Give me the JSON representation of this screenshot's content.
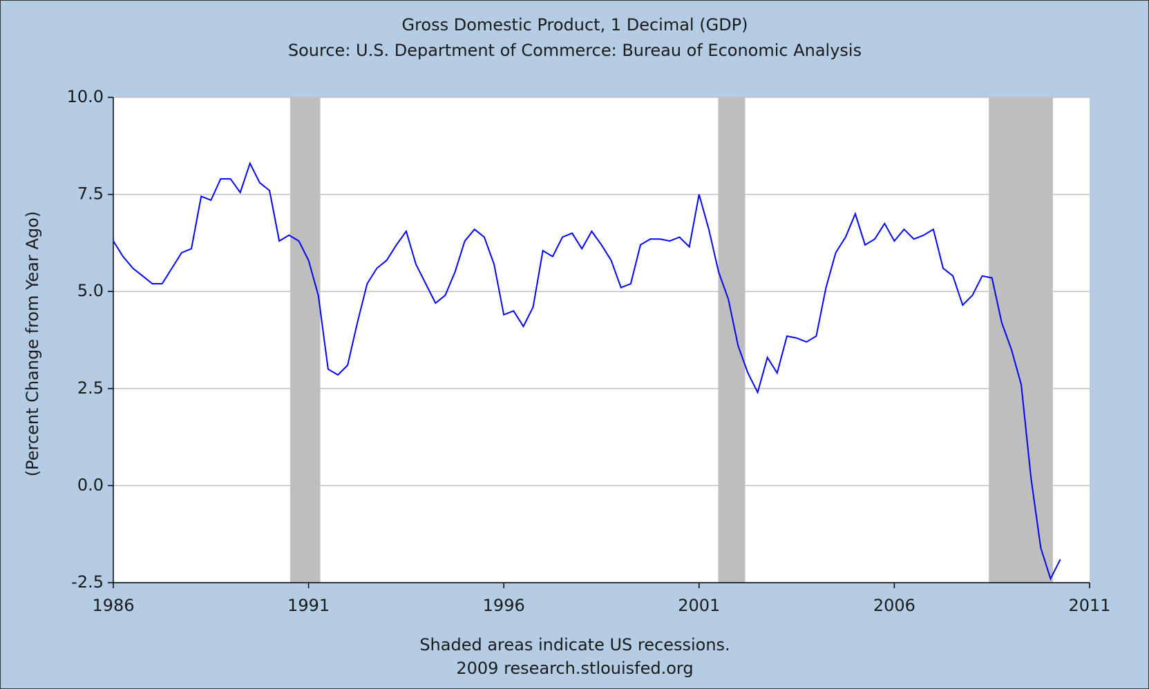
{
  "chart_data": {
    "type": "line",
    "title": "Gross Domestic Product, 1 Decimal (GDP)",
    "subtitle": "Source: U.S. Department of Commerce: Bureau of Economic Analysis",
    "y_label": "(Percent Change from Year Ago)",
    "footnotes": [
      "Shaded areas indicate US recessions.",
      "2009 research.stlouisfed.org"
    ],
    "x": [
      1986,
      1986.25,
      1986.5,
      1986.75,
      1987,
      1987.25,
      1987.5,
      1987.75,
      1988,
      1988.25,
      1988.5,
      1988.75,
      1989,
      1989.25,
      1989.5,
      1989.75,
      1990,
      1990.25,
      1990.5,
      1990.75,
      1991,
      1991.25,
      1991.5,
      1991.75,
      1992,
      1992.25,
      1992.5,
      1992.75,
      1993,
      1993.25,
      1993.5,
      1993.75,
      1994,
      1994.25,
      1994.5,
      1994.75,
      1995,
      1995.25,
      1995.5,
      1995.75,
      1996,
      1996.25,
      1996.5,
      1996.75,
      1997,
      1997.25,
      1997.5,
      1997.75,
      1998,
      1998.25,
      1998.5,
      1998.75,
      1999,
      1999.25,
      1999.5,
      1999.75,
      2000,
      2000.25,
      2000.5,
      2000.75,
      2001,
      2001.25,
      2001.5,
      2001.75,
      2002,
      2002.25,
      2002.5,
      2002.75,
      2003,
      2003.25,
      2003.5,
      2003.75,
      2004,
      2004.25,
      2004.5,
      2004.75,
      2005,
      2005.25,
      2005.5,
      2005.75,
      2006,
      2006.25,
      2006.5,
      2006.75,
      2007,
      2007.25,
      2007.5,
      2007.75,
      2008,
      2008.25,
      2008.5,
      2008.75,
      2009,
      2009.25,
      2009.5,
      2009.75,
      2010,
      2010.25
    ],
    "series": [
      {
        "name": "GDP",
        "color": "#0000ff",
        "values": [
          6.3,
          5.9,
          5.6,
          5.4,
          5.2,
          5.2,
          5.6,
          6.0,
          6.1,
          7.45,
          7.35,
          7.9,
          7.9,
          7.55,
          8.3,
          7.8,
          7.6,
          6.3,
          6.45,
          6.3,
          5.8,
          4.9,
          3.0,
          2.85,
          3.1,
          4.2,
          5.2,
          5.6,
          5.8,
          6.2,
          6.55,
          5.7,
          5.2,
          4.7,
          4.9,
          5.5,
          6.3,
          6.6,
          6.4,
          5.7,
          4.4,
          4.5,
          4.1,
          4.6,
          6.05,
          5.9,
          6.4,
          6.5,
          6.1,
          6.55,
          6.2,
          5.8,
          5.1,
          5.2,
          6.2,
          6.35,
          6.35,
          6.3,
          6.4,
          6.15,
          7.5,
          6.6,
          5.5,
          4.8,
          3.6,
          2.9,
          2.4,
          3.3,
          2.9,
          3.85,
          3.8,
          3.7,
          3.85,
          5.1,
          6.0,
          6.4,
          7.0,
          6.2,
          6.35,
          6.75,
          6.3,
          6.6,
          6.35,
          6.45,
          6.6,
          5.6,
          5.4,
          4.65,
          4.9,
          5.4,
          5.35,
          4.2,
          3.5,
          2.6,
          0.2,
          -1.6,
          -2.4,
          -1.9
        ]
      }
    ],
    "shaded_periods": [
      [
        1990.53,
        1991.3
      ],
      [
        2001.49,
        2002.18
      ],
      [
        2008.42,
        2010.06
      ]
    ],
    "shade_color": "#bebebe",
    "xlim": [
      1986,
      2011
    ],
    "xticks": [
      1986,
      1991,
      1996,
      2001,
      2006,
      2011
    ],
    "ylim": [
      -2.5,
      10
    ],
    "yticks": [
      {
        "value": 10,
        "label": "10.0"
      },
      7.5,
      {
        "value": 5,
        "label": "5.0"
      },
      2.5,
      {
        "value": 0,
        "label": "0.0"
      },
      -2.5
    ],
    "grid": true
  }
}
